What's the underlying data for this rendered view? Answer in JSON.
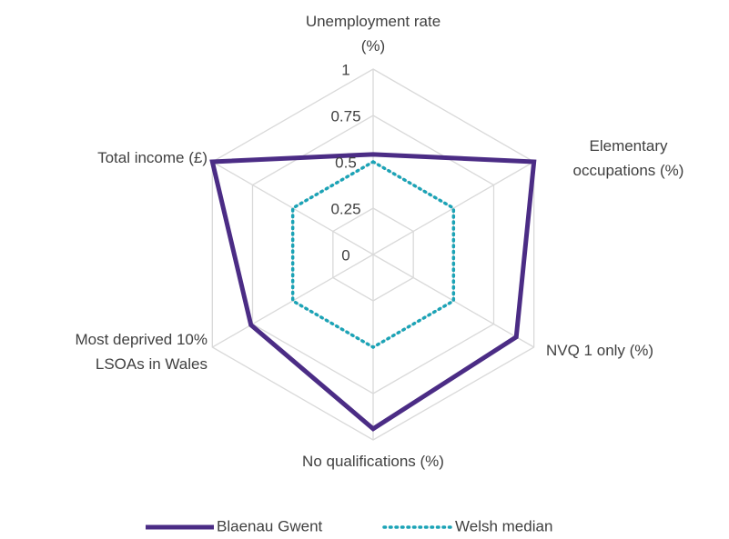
{
  "chart_data": {
    "type": "radar",
    "categories": [
      "Unemployment rate (%)",
      "Elementary occupations (%)",
      "NVQ 1 only (%)",
      "No qualifications (%)",
      "Most deprived 10% LSOAs in Wales",
      "Total income (£)"
    ],
    "series": [
      {
        "name": "Blaenau Gwent",
        "color": "#4b2c85",
        "style": "solid",
        "values": [
          0.54,
          1.0,
          0.89,
          0.94,
          0.76,
          1.0
        ]
      },
      {
        "name": "Welsh median",
        "color": "#1ba3b6",
        "style": "dotted",
        "values": [
          0.5,
          0.5,
          0.5,
          0.5,
          0.5,
          0.5
        ]
      }
    ],
    "ylim": [
      0,
      1
    ],
    "yticks": [
      0,
      0.25,
      0.5,
      0.75,
      1
    ],
    "grid": true,
    "legend": "bottom"
  }
}
